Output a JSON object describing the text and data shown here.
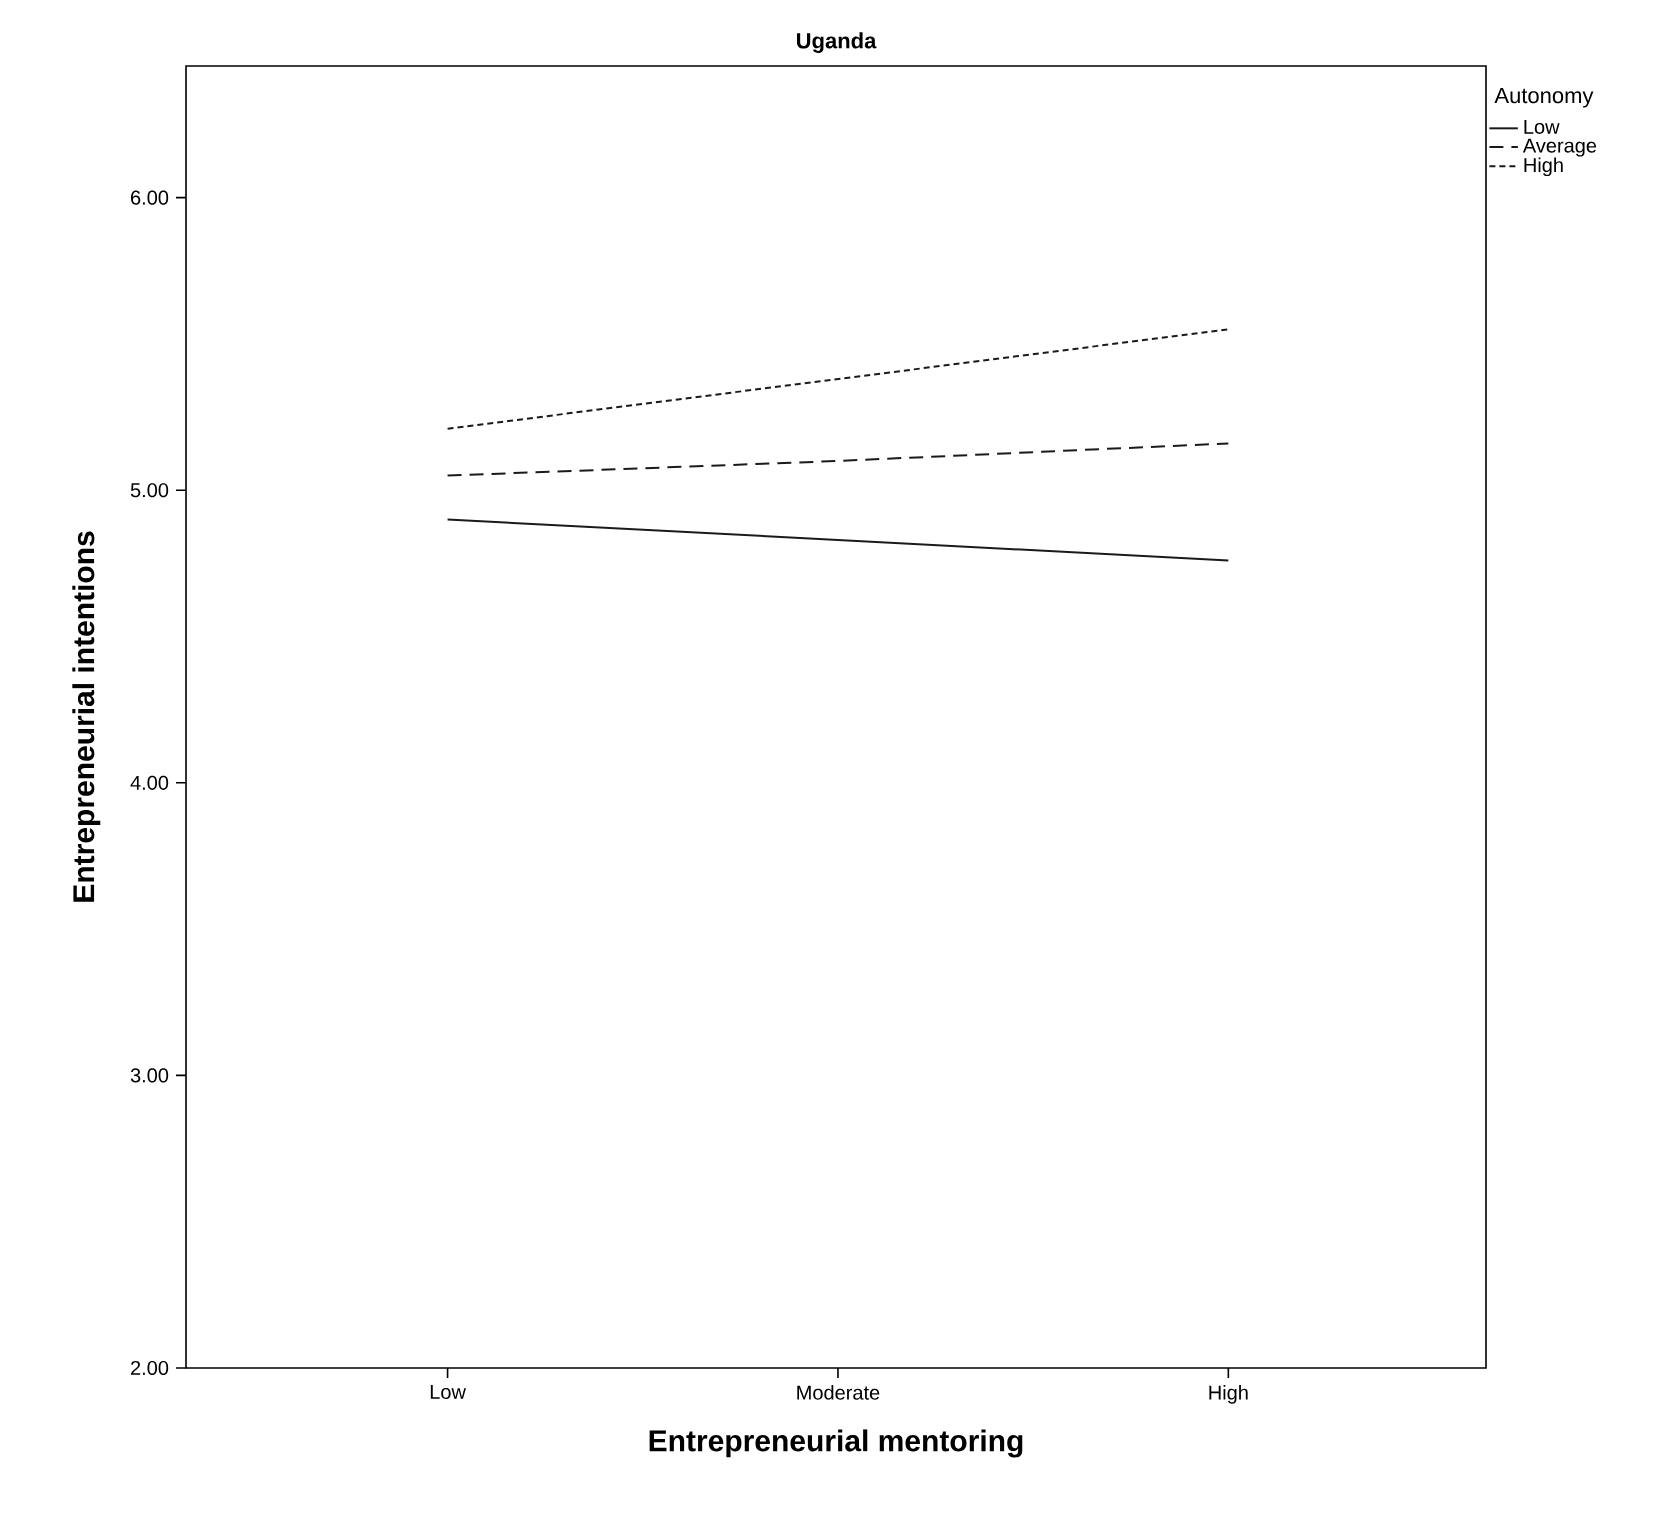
{
  "chart_data": {
    "type": "line",
    "title": "Uganda",
    "xlabel": "Entrepreneurial mentoring",
    "ylabel": "Entrepreneurial intentions",
    "legend_title": "Autonomy",
    "categories": [
      "Low",
      "Moderate",
      "High"
    ],
    "series": [
      {
        "name": "Low",
        "color": "#1a1a1a",
        "line_style": "solid",
        "values": [
          4.9,
          4.83,
          4.76
        ]
      },
      {
        "name": "Average",
        "color": "#1a1a1a",
        "line_style": "dashed",
        "values": [
          5.05,
          5.1,
          5.16
        ]
      },
      {
        "name": "High",
        "color": "#1a1a1a",
        "line_style": "dotted",
        "values": [
          5.21,
          5.38,
          5.55
        ]
      }
    ],
    "ylim": [
      2,
      6.45
    ],
    "yticks": [
      {
        "value": 2,
        "label": "2.00"
      },
      {
        "value": 3,
        "label": "3.00"
      },
      {
        "value": 4,
        "label": "4.00"
      },
      {
        "value": 5,
        "label": "5.00"
      },
      {
        "value": 6,
        "label": "6.00"
      }
    ],
    "legend": "top right"
  }
}
